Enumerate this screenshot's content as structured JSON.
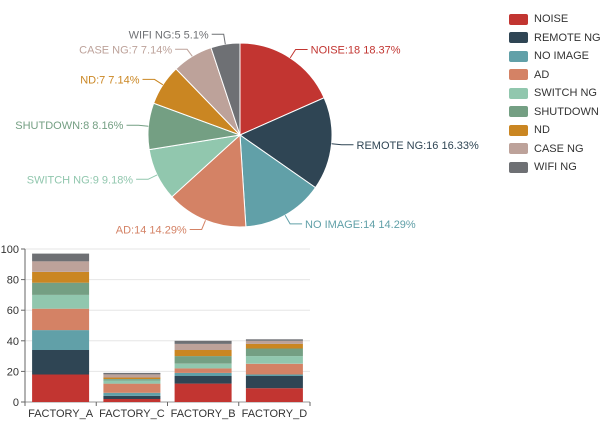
{
  "chart_data": [
    {
      "type": "pie",
      "slices": [
        {
          "name": "NOISE",
          "value": 18,
          "label": "NOISE:18 18.37%",
          "color": "#c23531"
        },
        {
          "name": "REMOTE NG",
          "value": 16,
          "label": "REMOTE NG:16 16.33%",
          "color": "#2f4554"
        },
        {
          "name": "NO IMAGE",
          "value": 14,
          "label": "NO IMAGE:14 14.29%",
          "color": "#61a0a8"
        },
        {
          "name": "AD",
          "value": 14,
          "label": "AD:14 14.29%",
          "color": "#d48265"
        },
        {
          "name": "SWITCH NG",
          "value": 9,
          "label": "SWITCH NG:9 9.18%",
          "color": "#91c7ae"
        },
        {
          "name": "SHUTDOWN",
          "value": 8,
          "label": "SHUTDOWN:8 8.16%",
          "color": "#749f83"
        },
        {
          "name": "ND",
          "value": 7,
          "label": "ND:7 7.14%",
          "color": "#ca8622"
        },
        {
          "name": "CASE NG",
          "value": 7,
          "label": "CASE NG:7 7.14%",
          "color": "#bda29a"
        },
        {
          "name": "WIFI NG",
          "value": 5,
          "label": "WIFI NG:5 5.1%",
          "color": "#6e7074"
        }
      ],
      "legend": [
        "NOISE",
        "REMOTE NG",
        "NO IMAGE",
        "AD",
        "SWITCH NG",
        "SHUTDOWN",
        "ND",
        "CASE NG",
        "WIFI NG"
      ],
      "legend_position": "top-right"
    },
    {
      "type": "bar",
      "stacked": true,
      "categories": [
        "FACTORY_A",
        "FACTORY_C",
        "FACTORY_B",
        "FACTORY_D"
      ],
      "ylim": [
        0,
        100
      ],
      "yticks": [
        0,
        20,
        40,
        60,
        80,
        100
      ],
      "grid": true,
      "series": [
        {
          "name": "NOISE",
          "color": "#c23531",
          "values": [
            18,
            2,
            12,
            9
          ]
        },
        {
          "name": "REMOTE NG",
          "color": "#2f4554",
          "values": [
            16,
            2,
            5,
            8
          ]
        },
        {
          "name": "NO IMAGE",
          "color": "#61a0a8",
          "values": [
            13,
            2,
            2,
            1
          ]
        },
        {
          "name": "AD",
          "color": "#d48265",
          "values": [
            14,
            6,
            3,
            7
          ]
        },
        {
          "name": "SWITCH NG",
          "color": "#91c7ae",
          "values": [
            9,
            2,
            3,
            5
          ]
        },
        {
          "name": "SHUTDOWN",
          "color": "#749f83",
          "values": [
            8,
            1,
            5,
            5
          ]
        },
        {
          "name": "ND",
          "color": "#ca8622",
          "values": [
            7,
            1,
            4,
            3
          ]
        },
        {
          "name": "CASE NG",
          "color": "#bda29a",
          "values": [
            7,
            2,
            4,
            2
          ]
        },
        {
          "name": "WIFI NG",
          "color": "#6e7074",
          "values": [
            5,
            1,
            2,
            1
          ]
        }
      ]
    }
  ]
}
